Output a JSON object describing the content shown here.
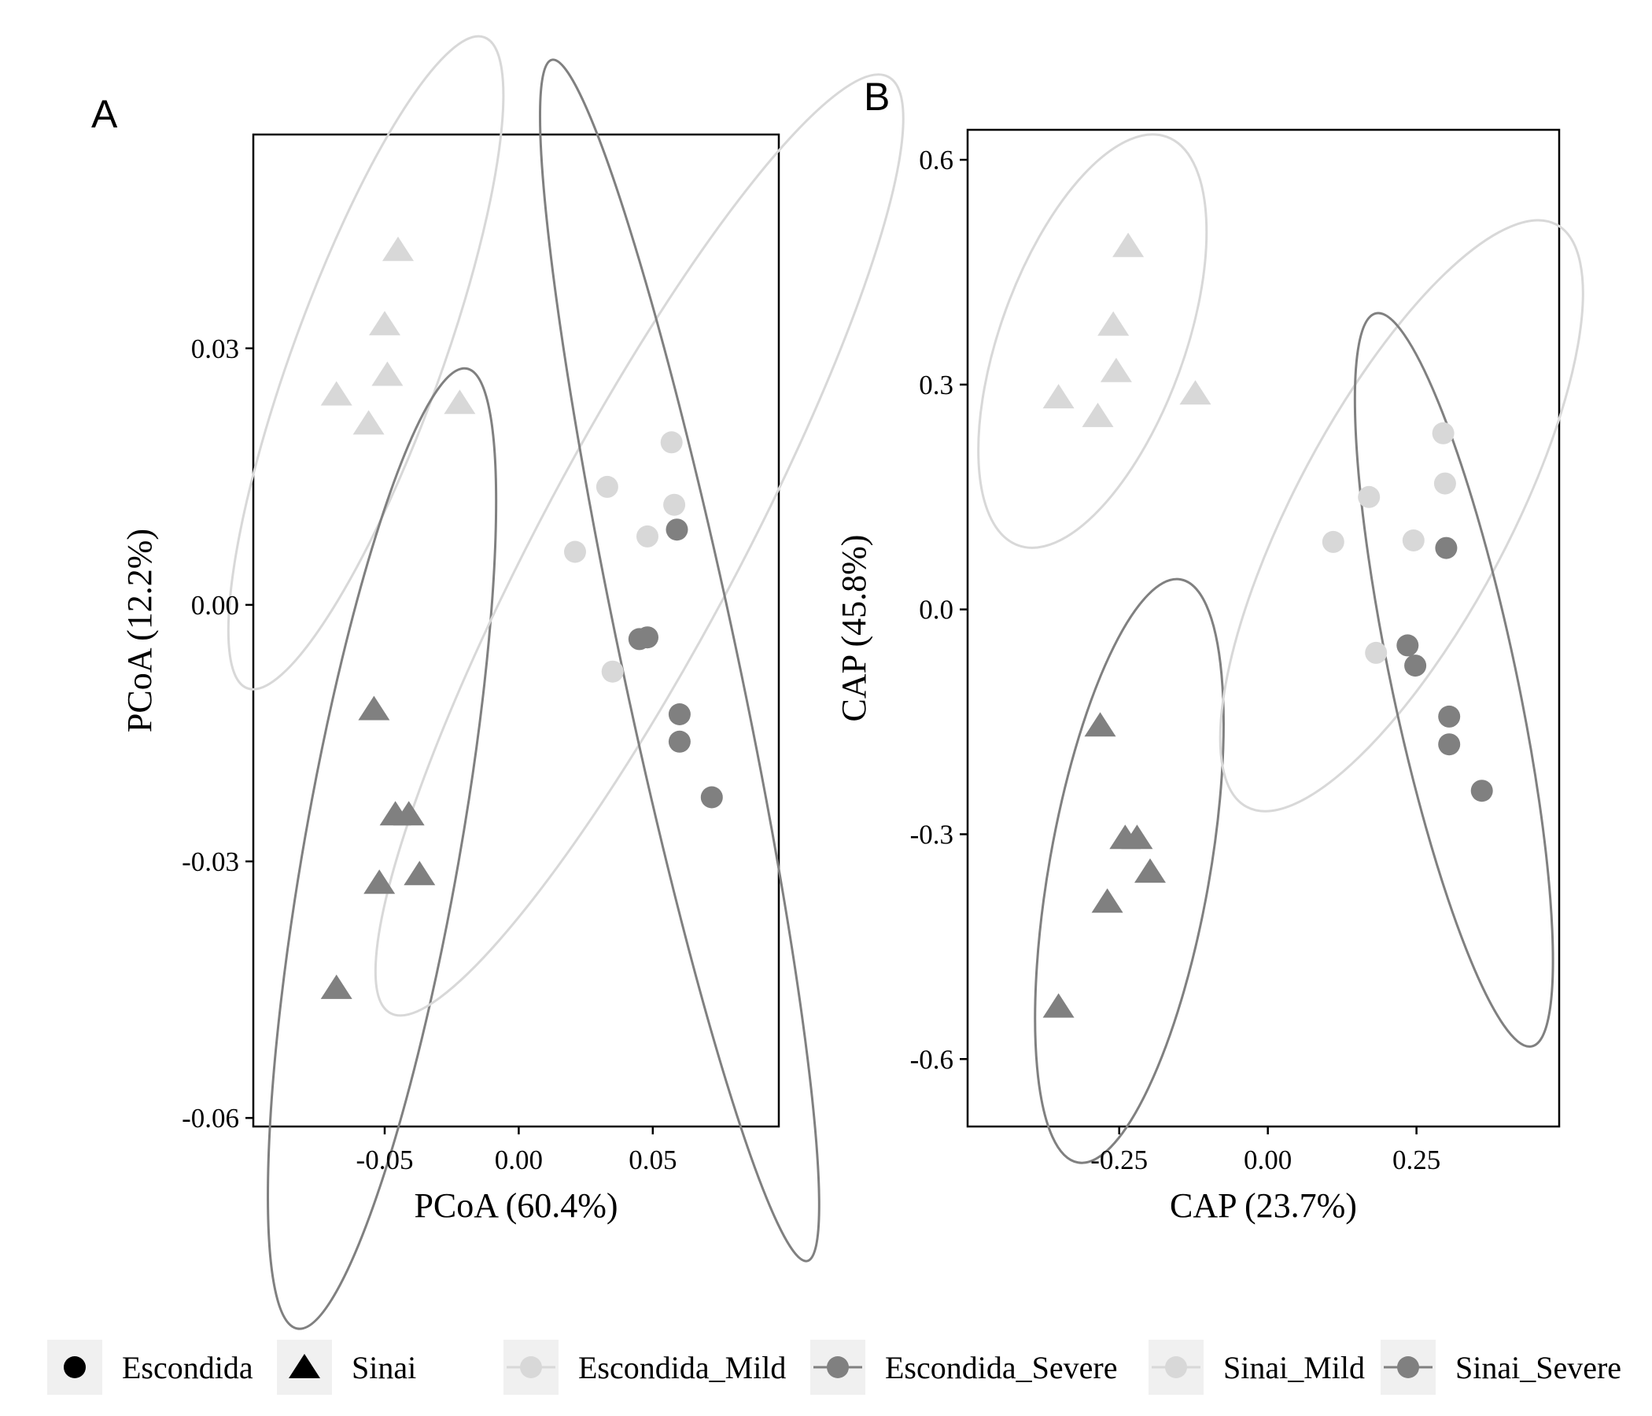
{
  "chart_data": [
    {
      "type": "scatter",
      "panel": "A",
      "xlabel": "PCoA (60.4%)",
      "ylabel": "PCoA (12.2%)",
      "xlim": [
        -0.099,
        0.097
      ],
      "ylim": [
        -0.061,
        0.055
      ],
      "xticks": [
        -0.05,
        0.0,
        0.05
      ],
      "xtick_labels": [
        "-0.05",
        "0.00",
        "0.05"
      ],
      "yticks": [
        0.03,
        0.0,
        -0.03,
        -0.06
      ],
      "ytick_labels": [
        "0.03",
        "0.00",
        "-0.03",
        "-0.06"
      ],
      "grid": false,
      "series": [
        {
          "name": "Sinai_Mild",
          "shape": "triangle",
          "color": "#d8d8d8",
          "points": [
            [
              -0.045,
              0.0415
            ],
            [
              -0.05,
              0.0328
            ],
            [
              -0.049,
              0.0269
            ],
            [
              -0.068,
              0.0246
            ],
            [
              -0.056,
              0.0212
            ],
            [
              -0.022,
              0.0236
            ]
          ]
        },
        {
          "name": "Sinai_Severe",
          "shape": "triangle",
          "color": "#808080",
          "points": [
            [
              -0.054,
              -0.0122
            ],
            [
              -0.046,
              -0.0245
            ],
            [
              -0.041,
              -0.0245
            ],
            [
              -0.052,
              -0.0325
            ],
            [
              -0.037,
              -0.0315
            ],
            [
              -0.068,
              -0.0448
            ]
          ]
        },
        {
          "name": "Escondida_Mild",
          "shape": "circle",
          "color": "#d8d8d8",
          "points": [
            [
              0.057,
              0.019
            ],
            [
              0.033,
              0.0138
            ],
            [
              0.058,
              0.0117
            ],
            [
              0.048,
              0.008
            ],
            [
              0.021,
              0.0062
            ],
            [
              0.035,
              -0.0078
            ]
          ]
        },
        {
          "name": "Escondida_Severe",
          "shape": "circle",
          "color": "#808080",
          "points": [
            [
              0.059,
              0.0088
            ],
            [
              0.045,
              -0.004
            ],
            [
              0.048,
              -0.0038
            ],
            [
              0.06,
              -0.0128
            ],
            [
              0.06,
              -0.016
            ],
            [
              0.072,
              -0.0225
            ]
          ]
        }
      ],
      "ellipses": [
        {
          "group": "Sinai_Mild",
          "color": "#d8d8d8",
          "center": [
            -0.057,
            0.0283
          ],
          "semi_major": 0.0277,
          "semi_minor": 0.0405,
          "angle_deg": 20
        },
        {
          "group": "Sinai_Severe",
          "color": "#808080",
          "center": [
            -0.051,
            -0.0285
          ],
          "semi_major": 0.029,
          "semi_minor": 0.057,
          "angle_deg": 10
        },
        {
          "group": "Escondida_Mild",
          "color": "#d8d8d8",
          "center": [
            0.045,
            0.007
          ],
          "semi_major": 0.037,
          "semi_minor": 0.062,
          "angle_deg": 28
        },
        {
          "group": "Escondida_Severe",
          "color": "#808080",
          "center": [
            0.06,
            -0.0065
          ],
          "semi_major": 0.0215,
          "semi_minor": 0.0718,
          "angle_deg": -12
        }
      ]
    },
    {
      "type": "scatter",
      "panel": "B",
      "xlabel": "CAP (23.7%)",
      "ylabel": "CAP (45.8%)",
      "xlim": [
        -0.505,
        0.49
      ],
      "ylim": [
        -0.69,
        0.64
      ],
      "xticks": [
        -0.25,
        0.0,
        0.25
      ],
      "xtick_labels": [
        "-0.25",
        "0.00",
        "0.25"
      ],
      "yticks": [
        0.6,
        0.3,
        0.0,
        -0.3,
        -0.6
      ],
      "ytick_labels": [
        "0.6",
        "0.3",
        "0.0",
        "-0.3",
        "-0.6"
      ],
      "grid": false,
      "series": [
        {
          "name": "Sinai_Mild",
          "shape": "triangle",
          "color": "#d8d8d8",
          "points": [
            [
              -0.235,
              0.485
            ],
            [
              -0.26,
              0.38
            ],
            [
              -0.255,
              0.318
            ],
            [
              -0.352,
              0.283
            ],
            [
              -0.286,
              0.258
            ],
            [
              -0.122,
              0.288
            ]
          ]
        },
        {
          "name": "Sinai_Severe",
          "shape": "triangle",
          "color": "#808080",
          "points": [
            [
              -0.282,
              -0.155
            ],
            [
              -0.24,
              -0.305
            ],
            [
              -0.22,
              -0.305
            ],
            [
              -0.198,
              -0.35
            ],
            [
              -0.27,
              -0.39
            ],
            [
              -0.352,
              -0.53
            ]
          ]
        },
        {
          "name": "Escondida_Mild",
          "shape": "circle",
          "color": "#d8d8d8",
          "points": [
            [
              0.295,
              0.235
            ],
            [
              0.298,
              0.168
            ],
            [
              0.17,
              0.15
            ],
            [
              0.11,
              0.09
            ],
            [
              0.245,
              0.092
            ],
            [
              0.182,
              -0.058
            ]
          ]
        },
        {
          "name": "Escondida_Severe",
          "shape": "circle",
          "color": "#808080",
          "points": [
            [
              0.3,
              0.082
            ],
            [
              0.235,
              -0.048
            ],
            [
              0.248,
              -0.075
            ],
            [
              0.305,
              -0.143
            ],
            [
              0.305,
              -0.18
            ],
            [
              0.36,
              -0.242
            ]
          ]
        }
      ],
      "ellipses": [
        {
          "group": "Sinai_Mild",
          "color": "#d8d8d8",
          "center": [
            -0.295,
            0.358
          ],
          "semi_major": 0.155,
          "semi_minor": 0.29,
          "angle_deg": 20
        },
        {
          "group": "Sinai_Severe",
          "color": "#808080",
          "center": [
            -0.233,
            -0.349
          ],
          "semi_major": 0.135,
          "semi_minor": 0.395,
          "angle_deg": 10
        },
        {
          "group": "Escondida_Mild",
          "color": "#d8d8d8",
          "center": [
            0.225,
            0.125
          ],
          "semi_major": 0.18,
          "semi_minor": 0.44,
          "angle_deg": 28
        },
        {
          "group": "Escondida_Severe",
          "color": "#808080",
          "center": [
            0.313,
            -0.094
          ],
          "semi_major": 0.105,
          "semi_minor": 0.5,
          "angle_deg": -12
        }
      ]
    }
  ],
  "panel_letters": {
    "a": "A",
    "b": "B"
  },
  "legend": {
    "shape_items": [
      {
        "label": "Escondida",
        "shape": "circle",
        "color": "#000000"
      },
      {
        "label": "Sinai",
        "shape": "triangle",
        "color": "#000000"
      }
    ],
    "color_items": [
      {
        "label": "Escondida_Mild",
        "color": "#d8d8d8"
      },
      {
        "label": "Escondida_Severe",
        "color": "#808080"
      },
      {
        "label": "Sinai_Mild",
        "color": "#d8d8d8"
      },
      {
        "label": "Sinai_Severe",
        "color": "#808080"
      }
    ]
  }
}
